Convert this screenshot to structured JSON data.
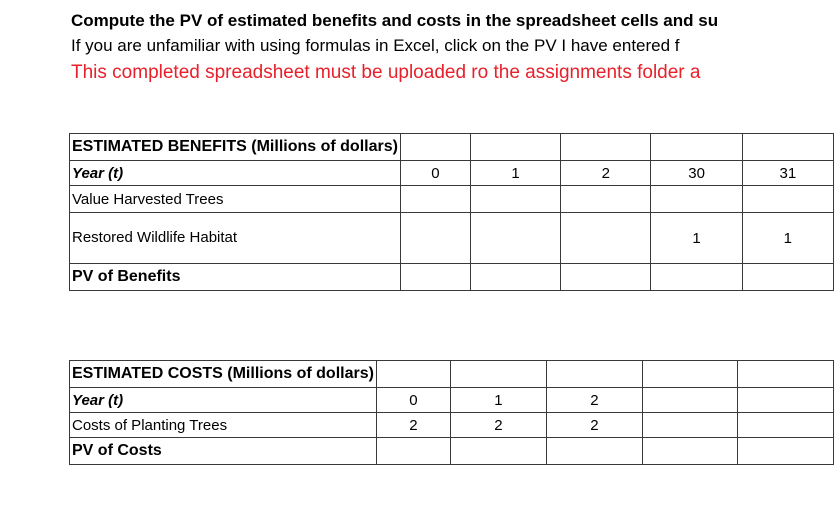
{
  "instructions": {
    "line1": "Compute the PV of estimated benefits and costs in the spreadsheet cells and su",
    "line2": "If you are unfamiliar with using formulas in Excel, click on the PV I have entered f",
    "line3": "This completed spreadsheet must be uploaded ro the assignments folder a",
    "line3_color": "#e8202a"
  },
  "benefits": {
    "header": "ESTIMATED BENEFITS (Millions of dollars)",
    "year_label": "Year (t)",
    "years": [
      "0",
      "1",
      "2",
      "30",
      "31"
    ],
    "rows": [
      {
        "label": "Value Harvested Trees",
        "values": [
          "",
          "",
          "",
          "",
          ""
        ]
      },
      {
        "label": "Restored Wildlife Habitat",
        "values": [
          "",
          "",
          "",
          "1",
          "1"
        ]
      }
    ],
    "pv_label": "PV of Benefits"
  },
  "costs": {
    "header": "ESTIMATED COSTS (Millions of dollars)",
    "year_label": "Year (t)",
    "years": [
      "0",
      "1",
      "2",
      "",
      ""
    ],
    "rows": [
      {
        "label": "Costs of Planting Trees",
        "values": [
          "2",
          "2",
          "2",
          "",
          ""
        ]
      }
    ],
    "pv_label": "PV of Costs"
  }
}
